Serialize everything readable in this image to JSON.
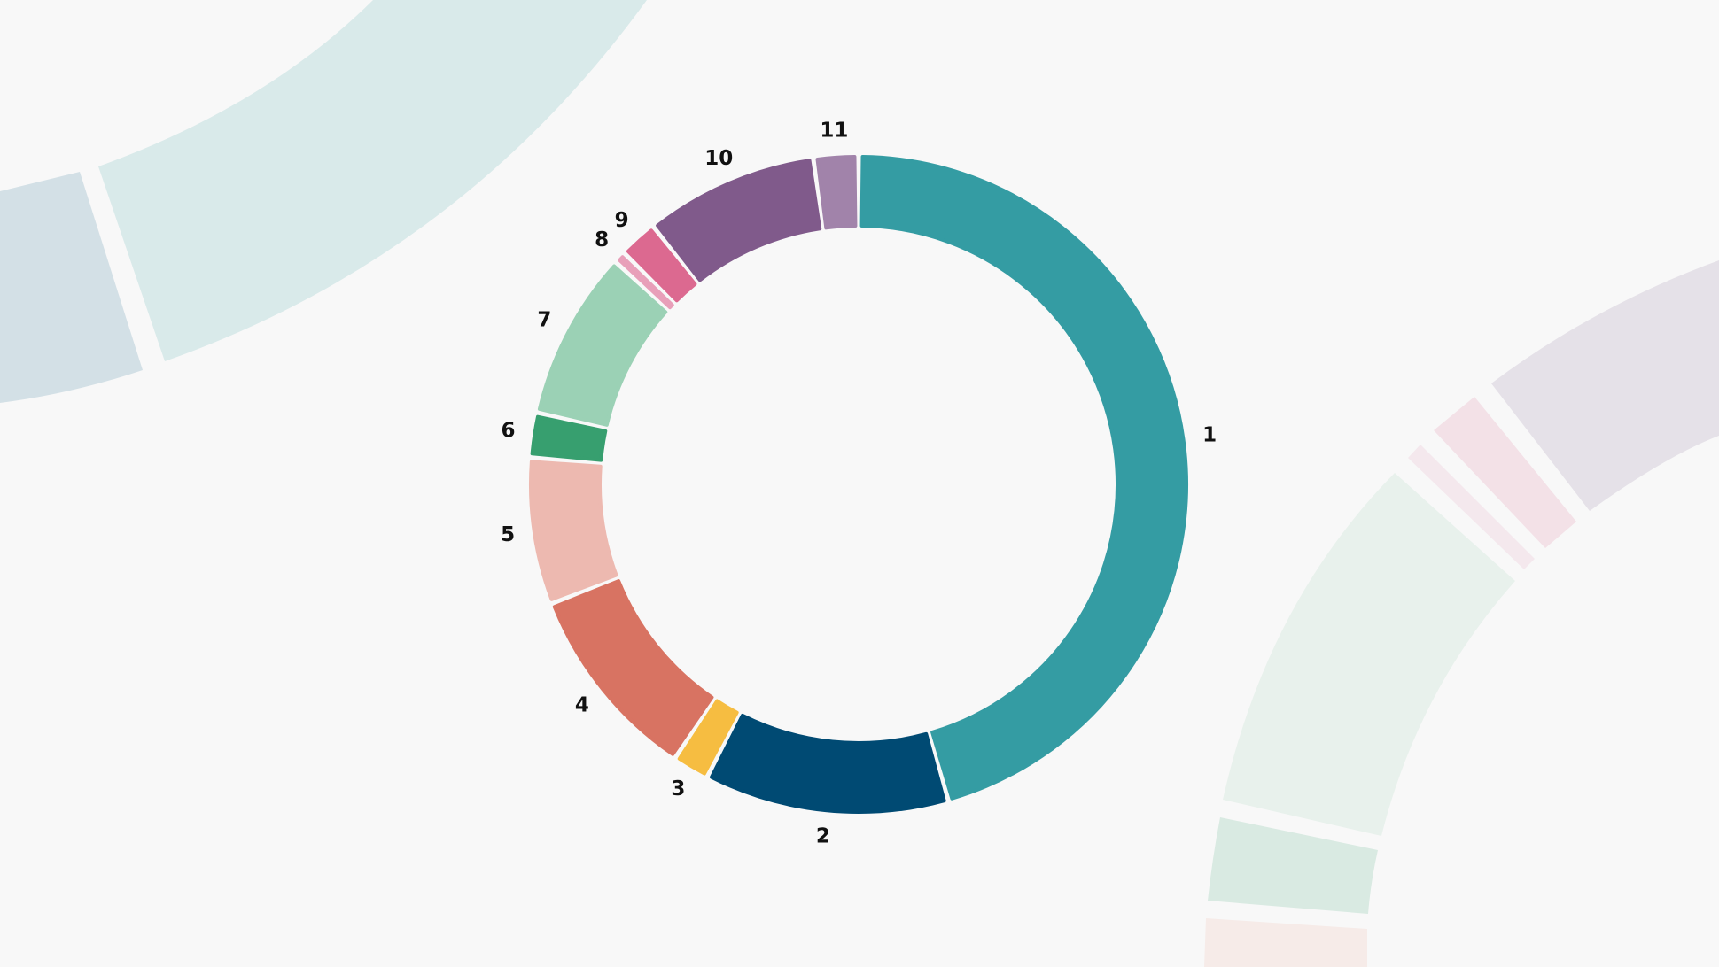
{
  "chart_data": {
    "type": "donut",
    "categories": [
      "1",
      "2",
      "3",
      "4",
      "5",
      "6",
      "7",
      "8",
      "9",
      "10",
      "11"
    ],
    "values": [
      45.6,
      12,
      1.8,
      9.7,
      7.2,
      2.2,
      8.3,
      0.6,
      1.9,
      8.5,
      2.2
    ],
    "colors": [
      "#349ca3",
      "#004a73",
      "#f6bd41",
      "#d87362",
      "#edb9b0",
      "#379f6f",
      "#9bd1b5",
      "#e89fb9",
      "#dc6990",
      "#805a8b",
      "#a183aa"
    ]
  }
}
